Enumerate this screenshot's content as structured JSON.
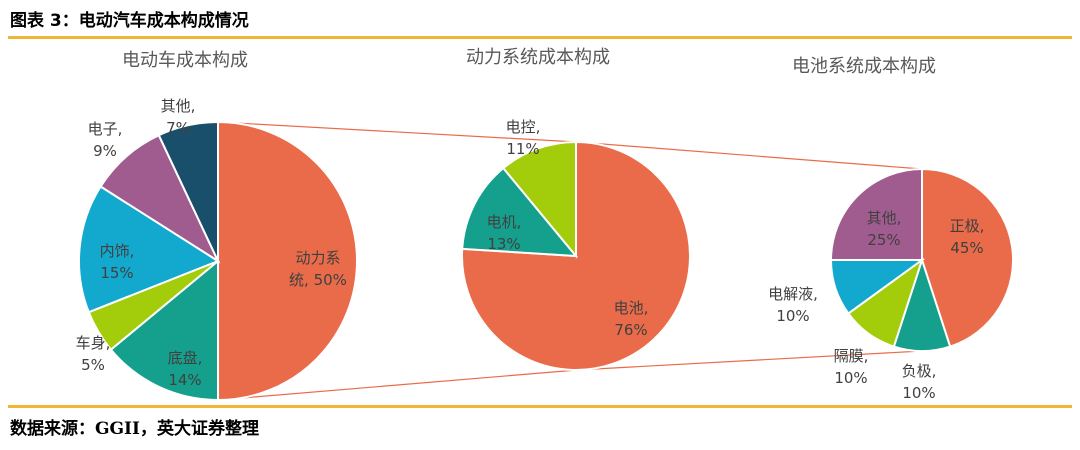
{
  "figure": {
    "title": "图表 3：电动汽车成本构成情况",
    "source": "数据来源：GGII，英大证券整理"
  },
  "chart_data": [
    {
      "type": "pie",
      "title": "电动车成本构成",
      "slices": [
        {
          "label": "动力系统",
          "value": 50,
          "color": "#ea6b4a"
        },
        {
          "label": "底盘",
          "value": 14,
          "color": "#14a08c"
        },
        {
          "label": "车身",
          "value": 5,
          "color": "#a3cc0a"
        },
        {
          "label": "内饰",
          "value": 15,
          "color": "#13a9cf"
        },
        {
          "label": "电子",
          "value": 9,
          "color": "#a05c8f"
        },
        {
          "label": "其他",
          "value": 7,
          "color": "#1a4f6b"
        }
      ]
    },
    {
      "type": "pie",
      "title": "动力系统成本构成",
      "slices": [
        {
          "label": "电池",
          "value": 76,
          "color": "#ea6b4a"
        },
        {
          "label": "电机",
          "value": 13,
          "color": "#14a08c"
        },
        {
          "label": "电控",
          "value": 11,
          "color": "#a3cc0a"
        }
      ]
    },
    {
      "type": "pie",
      "title": "电池系统成本构成",
      "slices": [
        {
          "label": "正极",
          "value": 45,
          "color": "#ea6b4a"
        },
        {
          "label": "负极",
          "value": 10,
          "color": "#14a08c"
        },
        {
          "label": "隔膜",
          "value": 10,
          "color": "#a3cc0a"
        },
        {
          "label": "电解液",
          "value": 10,
          "color": "#13a9cf"
        },
        {
          "label": "其他",
          "value": 25,
          "color": "#a05c8f"
        }
      ]
    }
  ],
  "connector_color": "#ea6b4a"
}
